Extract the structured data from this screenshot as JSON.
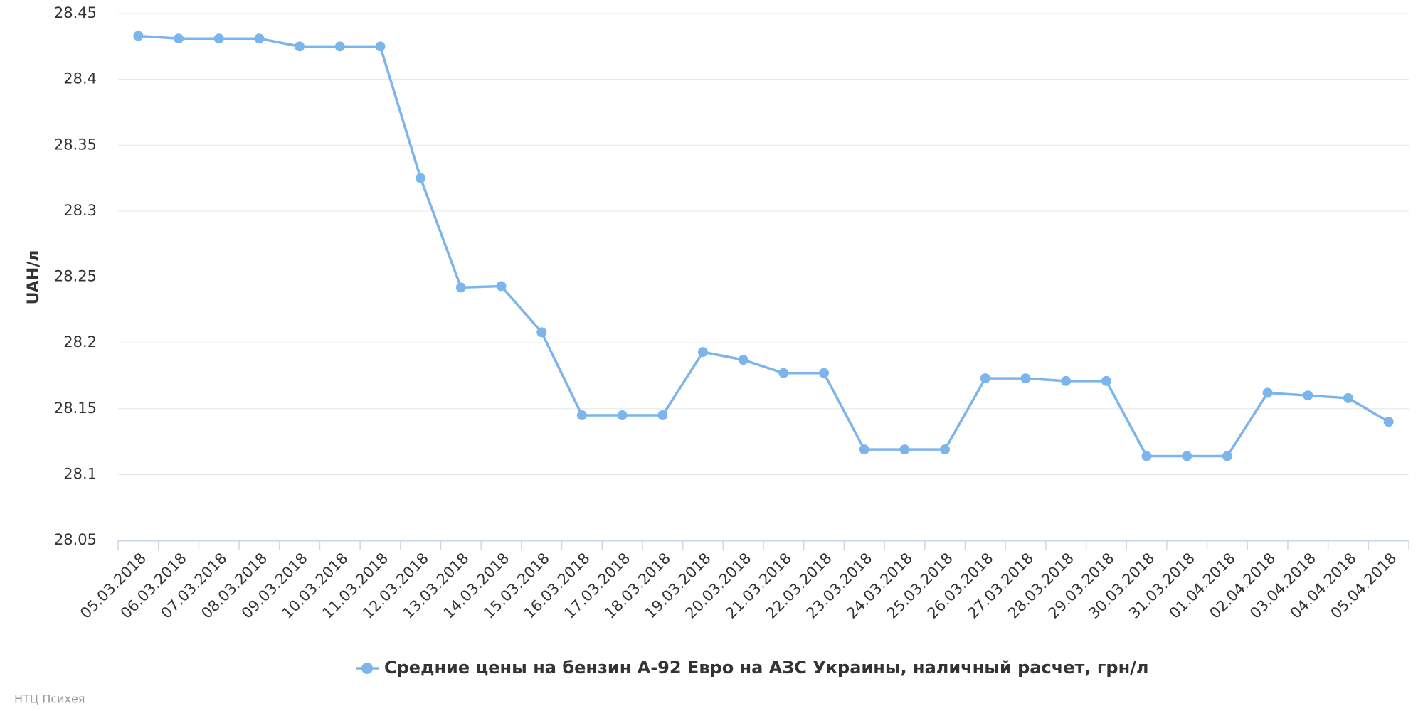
{
  "chart_data": {
    "type": "line",
    "y_axis_label": "UAH/л",
    "categories": [
      "05.03.2018",
      "06.03.2018",
      "07.03.2018",
      "08.03.2018",
      "09.03.2018",
      "10.03.2018",
      "11.03.2018",
      "12.03.2018",
      "13.03.2018",
      "14.03.2018",
      "15.03.2018",
      "16.03.2018",
      "17.03.2018",
      "18.03.2018",
      "19.03.2018",
      "20.03.2018",
      "21.03.2018",
      "22.03.2018",
      "23.03.2018",
      "24.03.2018",
      "25.03.2018",
      "26.03.2018",
      "27.03.2018",
      "28.03.2018",
      "29.03.2018",
      "30.03.2018",
      "31.03.2018",
      "01.04.2018",
      "02.04.2018",
      "03.04.2018",
      "04.04.2018",
      "05.04.2018"
    ],
    "series": [
      {
        "name": "Средние цены на бензин А-92 Евро на АЗС Украины, наличный расчет, грн/л",
        "color": "#7cb5ec",
        "values": [
          28.433,
          28.431,
          28.431,
          28.431,
          28.425,
          28.425,
          28.425,
          28.325,
          28.242,
          28.243,
          28.208,
          28.145,
          28.145,
          28.145,
          28.193,
          28.187,
          28.177,
          28.177,
          28.119,
          28.119,
          28.119,
          28.173,
          28.173,
          28.171,
          28.171,
          28.114,
          28.114,
          28.114,
          28.162,
          28.16,
          28.158,
          28.14
        ]
      }
    ],
    "ylim": [
      28.05,
      28.45
    ],
    "yticks": [
      28.05,
      28.1,
      28.15,
      28.2,
      28.25,
      28.3,
      28.35,
      28.4,
      28.45
    ],
    "grid": true,
    "credits": "НТЦ Психея"
  }
}
